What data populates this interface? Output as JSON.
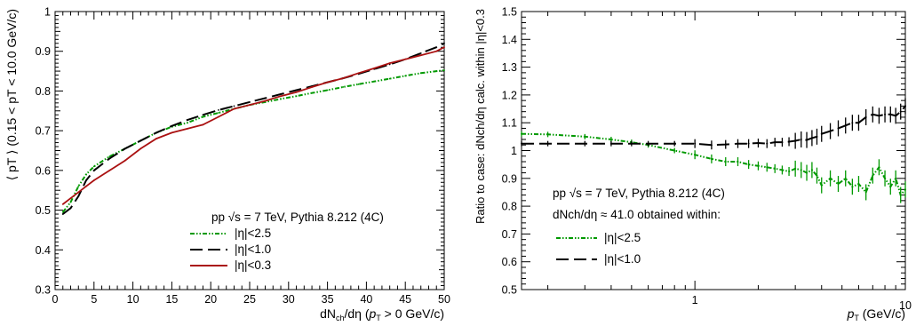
{
  "chart_data": [
    {
      "type": "line",
      "title": "",
      "xlabel": {
        "main": "dN",
        "sub": "ch",
        "rest": "/dη (",
        "pt": "p",
        "ptsub": "T",
        "tail": " > 0 GeV/c)"
      },
      "ylabel": "⟨ pT ⟩ (0.15 < pT < 10.0 GeV/c)",
      "xlim": [
        0,
        50
      ],
      "ylim": [
        0.3,
        1.0
      ],
      "xticks": [
        "0",
        "5",
        "10",
        "15",
        "20",
        "25",
        "30",
        "35",
        "40",
        "45",
        "50"
      ],
      "yticks": [
        "0.3",
        "0.4",
        "0.5",
        "0.6",
        "0.7",
        "0.8",
        "0.9",
        "1"
      ],
      "legend": {
        "header": "pp √s = 7 TeV, Pythia 8.212 (4C)",
        "placement": "bottom-right"
      },
      "series": [
        {
          "name": "|η|<2.5",
          "color": "#009900",
          "style": "dash-dot-dot",
          "x": [
            1,
            2,
            3,
            4,
            5,
            7,
            9,
            11,
            13,
            15,
            17,
            19,
            21,
            23,
            25,
            27,
            29,
            31,
            33,
            35,
            37,
            39,
            41,
            43,
            45,
            47,
            49,
            50
          ],
          "y": [
            0.495,
            0.52,
            0.56,
            0.59,
            0.61,
            0.635,
            0.655,
            0.675,
            0.695,
            0.71,
            0.72,
            0.735,
            0.745,
            0.755,
            0.765,
            0.772,
            0.78,
            0.787,
            0.795,
            0.802,
            0.81,
            0.817,
            0.824,
            0.831,
            0.838,
            0.845,
            0.85,
            0.852
          ]
        },
        {
          "name": "|η|<1.0",
          "color": "#000000",
          "style": "long-dash",
          "x": [
            1,
            2,
            3,
            4,
            5,
            7,
            9,
            11,
            13,
            15,
            17,
            19,
            21,
            23,
            25,
            27,
            29,
            31,
            33,
            35,
            37,
            39,
            41,
            43,
            45,
            47,
            49,
            50
          ],
          "y": [
            0.49,
            0.505,
            0.535,
            0.575,
            0.6,
            0.63,
            0.655,
            0.675,
            0.695,
            0.712,
            0.727,
            0.74,
            0.752,
            0.762,
            0.772,
            0.782,
            0.792,
            0.802,
            0.812,
            0.822,
            0.832,
            0.843,
            0.855,
            0.867,
            0.88,
            0.895,
            0.91,
            0.92
          ]
        },
        {
          "name": "|η|<0.3",
          "color": "#aa1111",
          "style": "solid",
          "x": [
            1,
            2,
            3,
            4,
            5,
            7,
            9,
            11,
            13,
            15,
            17,
            19,
            21,
            23,
            25,
            27,
            29,
            31,
            33,
            35,
            37,
            39,
            41,
            43,
            45,
            47,
            49,
            50
          ],
          "y": [
            0.515,
            0.53,
            0.545,
            0.56,
            0.575,
            0.6,
            0.625,
            0.655,
            0.68,
            0.695,
            0.705,
            0.715,
            0.735,
            0.755,
            0.765,
            0.775,
            0.787,
            0.797,
            0.81,
            0.822,
            0.832,
            0.845,
            0.857,
            0.87,
            0.88,
            0.89,
            0.9,
            0.91
          ]
        }
      ]
    },
    {
      "type": "line",
      "title": "",
      "xscale": "log",
      "xlabel": {
        "pt": "p",
        "ptsub": "T",
        "tail": " (GeV/c)"
      },
      "ylabel": "Ratio to case: dNch/dη calc. within |η|<0.3",
      "xlim": [
        0.15,
        10
      ],
      "ylim": [
        0.5,
        1.5
      ],
      "xticks": [
        "1",
        "10"
      ],
      "yticks": [
        "0.5",
        "0.6",
        "0.7",
        "0.8",
        "0.9",
        "1",
        "1.1",
        "1.2",
        "1.3",
        "1.4",
        "1.5"
      ],
      "legend": {
        "header": "pp √s = 7 TeV, Pythia 8.212 (4C)",
        "header2": "dNch/dη ≈ 41.0 obtained within:",
        "placement": "bottom-left"
      },
      "series": [
        {
          "name": "|η|<2.5",
          "color": "#009900",
          "style": "dash-dot-dot",
          "x": [
            0.15,
            0.2,
            0.3,
            0.4,
            0.5,
            0.6,
            0.8,
            1.0,
            1.2,
            1.4,
            1.6,
            1.8,
            2.0,
            2.2,
            2.4,
            2.6,
            2.8,
            3.0,
            3.2,
            3.4,
            3.6,
            3.8,
            4.0,
            4.4,
            4.8,
            5.2,
            5.6,
            6.0,
            6.5,
            7.0,
            7.5,
            8.0,
            8.5,
            9.0,
            9.5,
            10.0
          ],
          "y": [
            1.06,
            1.058,
            1.05,
            1.04,
            1.03,
            1.02,
            1.0,
            0.985,
            0.97,
            0.96,
            0.96,
            0.95,
            0.945,
            0.94,
            0.935,
            0.93,
            0.925,
            0.935,
            0.93,
            0.92,
            0.93,
            0.91,
            0.875,
            0.9,
            0.88,
            0.9,
            0.87,
            0.88,
            0.85,
            0.91,
            0.94,
            0.9,
            0.87,
            0.9,
            0.84,
            0.86
          ]
        },
        {
          "name": "|η|<1.0",
          "color": "#000000",
          "style": "long-dash",
          "x": [
            0.15,
            0.2,
            0.3,
            0.4,
            0.5,
            0.6,
            0.8,
            1.0,
            1.2,
            1.4,
            1.6,
            1.8,
            2.0,
            2.2,
            2.4,
            2.6,
            2.8,
            3.0,
            3.2,
            3.4,
            3.6,
            3.8,
            4.0,
            4.4,
            4.8,
            5.2,
            5.6,
            6.0,
            6.5,
            7.0,
            7.5,
            8.0,
            8.5,
            9.0,
            9.5,
            10.0
          ],
          "y": [
            1.025,
            1.025,
            1.025,
            1.025,
            1.025,
            1.025,
            1.025,
            1.025,
            1.02,
            1.022,
            1.025,
            1.025,
            1.027,
            1.025,
            1.03,
            1.03,
            1.032,
            1.035,
            1.04,
            1.038,
            1.045,
            1.05,
            1.06,
            1.07,
            1.08,
            1.09,
            1.1,
            1.1,
            1.12,
            1.13,
            1.125,
            1.13,
            1.13,
            1.125,
            1.14,
            1.16
          ]
        }
      ]
    }
  ]
}
